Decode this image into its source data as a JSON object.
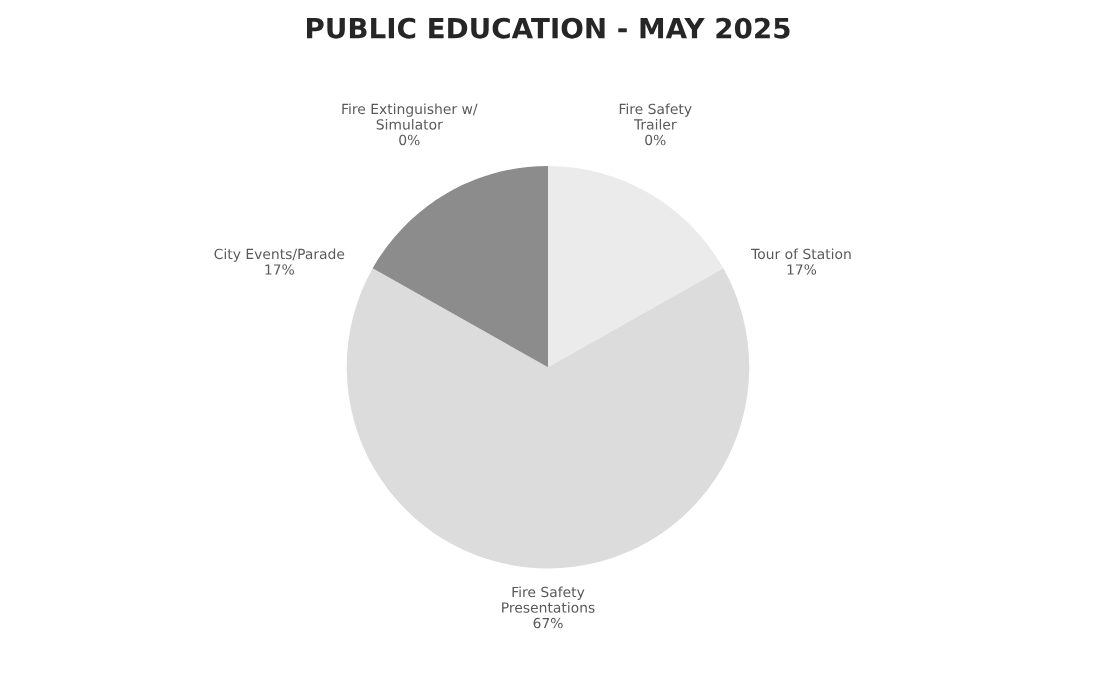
{
  "chart_data": {
    "type": "pie",
    "title": "PUBLIC EDUCATION - MAY 2025",
    "categories": [
      "Fire Safety Trailer",
      "Tour of Station",
      "Fire Safety Presentations",
      "City Events/Parade",
      "Fire Extinguisher w/ Simulator"
    ],
    "values": [
      0,
      17,
      67,
      17,
      0
    ],
    "value_labels": [
      "0%",
      "17%",
      "67%",
      "17%",
      "0%"
    ],
    "colors": [
      "#f2f2f2",
      "#ebebeb",
      "#dcdcdc",
      "#8c8c8c",
      "#595959"
    ],
    "legend": false
  }
}
